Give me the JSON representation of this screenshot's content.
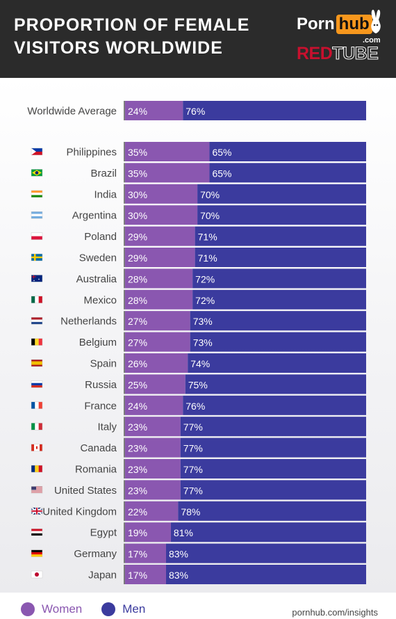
{
  "header": {
    "title_line1": "PROPORTION OF FEMALE",
    "title_line2": "VISITORS WORLDWIDE",
    "logo_porn": "Porn",
    "logo_hub": "hub",
    "logo_com": ".com",
    "logo_red": "RED",
    "logo_tube": "TUBE"
  },
  "colors": {
    "women": "#8a57b0",
    "men": "#3b3b9e",
    "header_bg": "#2b2b2b",
    "pornhub_orange": "#f7971d",
    "redtube_red": "#c8102e"
  },
  "legend": {
    "women": "Women",
    "men": "Men"
  },
  "source": "pornhub.com/insights",
  "chart_data": {
    "type": "bar",
    "stacked": true,
    "orientation": "horizontal",
    "xlim": [
      0,
      100
    ],
    "average": {
      "label": "Worldwide Average",
      "women": 24,
      "men": 76
    },
    "categories": [
      "Philippines",
      "Brazil",
      "India",
      "Argentina",
      "Poland",
      "Sweden",
      "Australia",
      "Mexico",
      "Netherlands",
      "Belgium",
      "Spain",
      "Russia",
      "France",
      "Italy",
      "Canada",
      "Romania",
      "United States",
      "United Kingdom",
      "Egypt",
      "Germany",
      "Japan"
    ],
    "flags": [
      "philippines-flag-icon",
      "brazil-flag-icon",
      "india-flag-icon",
      "argentina-flag-icon",
      "poland-flag-icon",
      "sweden-flag-icon",
      "australia-flag-icon",
      "mexico-flag-icon",
      "netherlands-flag-icon",
      "belgium-flag-icon",
      "spain-flag-icon",
      "russia-flag-icon",
      "france-flag-icon",
      "italy-flag-icon",
      "canada-flag-icon",
      "romania-flag-icon",
      "united-states-flag-icon",
      "united-kingdom-flag-icon",
      "egypt-flag-icon",
      "germany-flag-icon",
      "japan-flag-icon"
    ],
    "series": [
      {
        "name": "Women",
        "values": [
          35,
          35,
          30,
          30,
          29,
          29,
          28,
          28,
          27,
          27,
          26,
          25,
          24,
          23,
          23,
          23,
          23,
          22,
          19,
          17,
          17
        ]
      },
      {
        "name": "Men",
        "values": [
          65,
          65,
          70,
          70,
          71,
          71,
          72,
          72,
          73,
          73,
          74,
          75,
          76,
          77,
          77,
          77,
          77,
          78,
          81,
          83,
          83
        ]
      }
    ]
  }
}
